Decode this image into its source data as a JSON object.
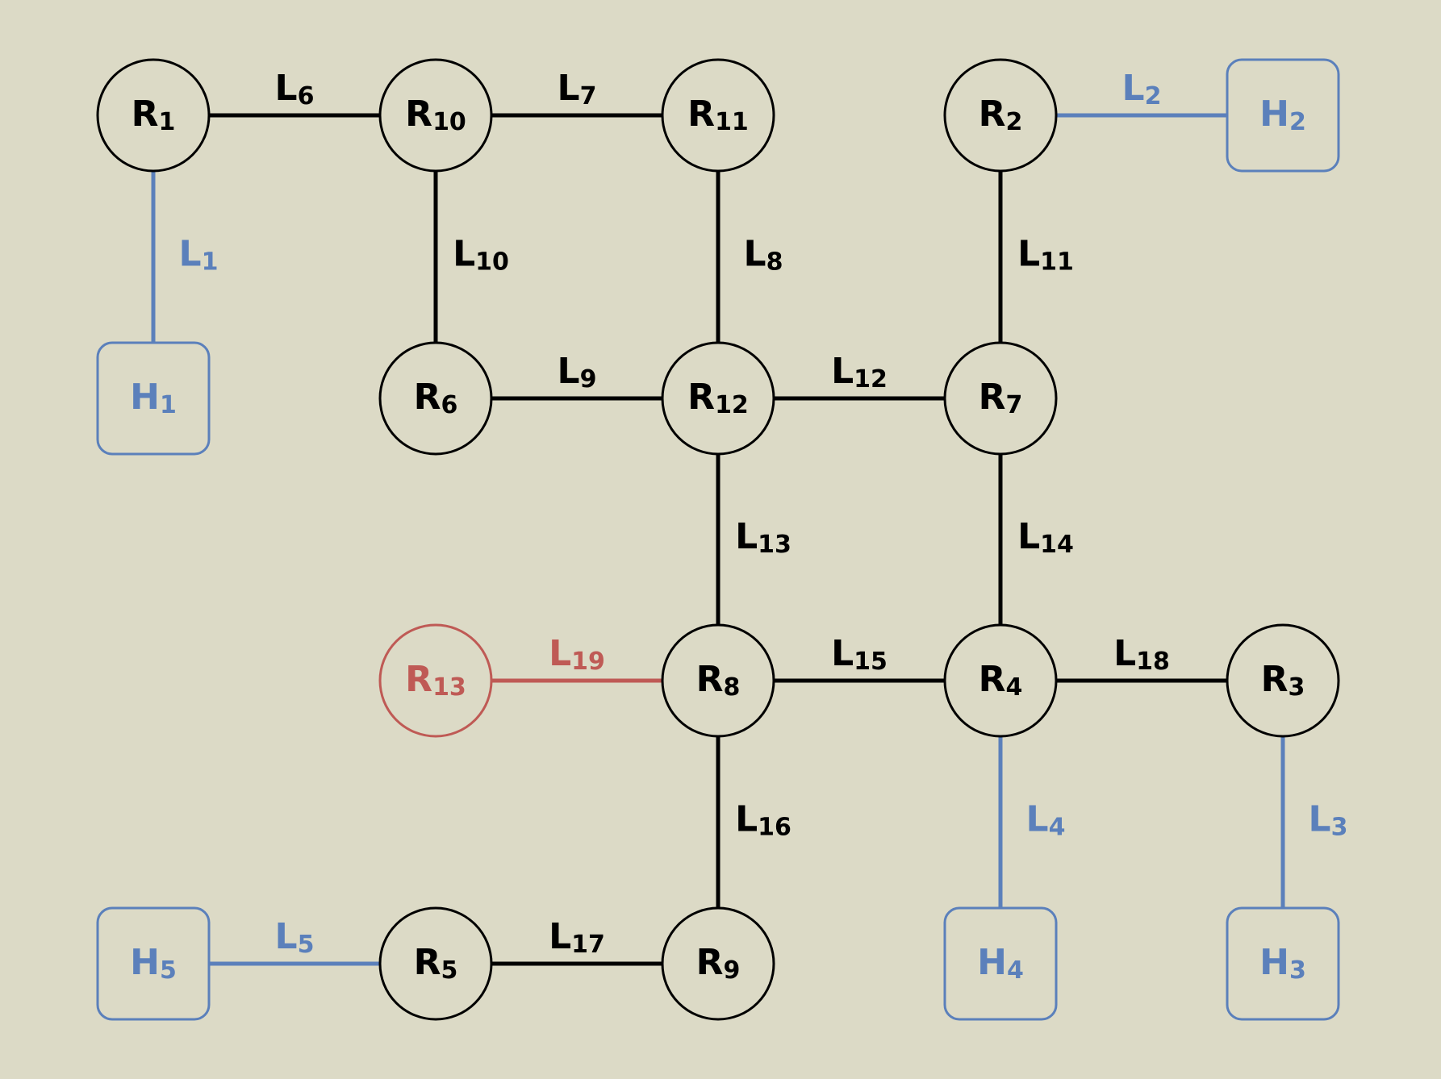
{
  "colors": {
    "background": "#dcdac6",
    "router": "#000000",
    "host": "#5b80bb",
    "highlight": "#bf5a55"
  },
  "nodes": [
    {
      "id": "R1",
      "type": "router",
      "base": "R",
      "sub": "1",
      "col": 0,
      "row": 0
    },
    {
      "id": "R10",
      "type": "router",
      "base": "R",
      "sub": "10",
      "col": 1,
      "row": 0
    },
    {
      "id": "R11",
      "type": "router",
      "base": "R",
      "sub": "11",
      "col": 2,
      "row": 0
    },
    {
      "id": "R2",
      "type": "router",
      "base": "R",
      "sub": "2",
      "col": 3,
      "row": 0
    },
    {
      "id": "H2",
      "type": "host",
      "base": "H",
      "sub": "2",
      "col": 4,
      "row": 0
    },
    {
      "id": "H1",
      "type": "host",
      "base": "H",
      "sub": "1",
      "col": 0,
      "row": 1
    },
    {
      "id": "R6",
      "type": "router",
      "base": "R",
      "sub": "6",
      "col": 1,
      "row": 1
    },
    {
      "id": "R12",
      "type": "router",
      "base": "R",
      "sub": "12",
      "col": 2,
      "row": 1
    },
    {
      "id": "R7",
      "type": "router",
      "base": "R",
      "sub": "7",
      "col": 3,
      "row": 1
    },
    {
      "id": "R13",
      "type": "highlight",
      "base": "R",
      "sub": "13",
      "col": 1,
      "row": 2
    },
    {
      "id": "R8",
      "type": "router",
      "base": "R",
      "sub": "8",
      "col": 2,
      "row": 2
    },
    {
      "id": "R4",
      "type": "router",
      "base": "R",
      "sub": "4",
      "col": 3,
      "row": 2
    },
    {
      "id": "R3",
      "type": "router",
      "base": "R",
      "sub": "3",
      "col": 4,
      "row": 2
    },
    {
      "id": "H5",
      "type": "host",
      "base": "H",
      "sub": "5",
      "col": 0,
      "row": 3
    },
    {
      "id": "R5",
      "type": "router",
      "base": "R",
      "sub": "5",
      "col": 1,
      "row": 3
    },
    {
      "id": "R9",
      "type": "router",
      "base": "R",
      "sub": "9",
      "col": 2,
      "row": 3
    },
    {
      "id": "H4",
      "type": "host",
      "base": "H",
      "sub": "4",
      "col": 3,
      "row": 3
    },
    {
      "id": "H3",
      "type": "host",
      "base": "H",
      "sub": "3",
      "col": 4,
      "row": 3
    }
  ],
  "links": [
    {
      "id": "L1",
      "sub": "1",
      "from": "R1",
      "to": "H1",
      "type": "host"
    },
    {
      "id": "L2",
      "sub": "2",
      "from": "R2",
      "to": "H2",
      "type": "host"
    },
    {
      "id": "L3",
      "sub": "3",
      "from": "R3",
      "to": "H3",
      "type": "host"
    },
    {
      "id": "L4",
      "sub": "4",
      "from": "R4",
      "to": "H4",
      "type": "host"
    },
    {
      "id": "L5",
      "sub": "5",
      "from": "H5",
      "to": "R5",
      "type": "host"
    },
    {
      "id": "L6",
      "sub": "6",
      "from": "R1",
      "to": "R10",
      "type": "router"
    },
    {
      "id": "L7",
      "sub": "7",
      "from": "R10",
      "to": "R11",
      "type": "router"
    },
    {
      "id": "L8",
      "sub": "8",
      "from": "R11",
      "to": "R12",
      "type": "router"
    },
    {
      "id": "L9",
      "sub": "9",
      "from": "R6",
      "to": "R12",
      "type": "router"
    },
    {
      "id": "L10",
      "sub": "10",
      "from": "R10",
      "to": "R6",
      "type": "router"
    },
    {
      "id": "L11",
      "sub": "11",
      "from": "R2",
      "to": "R7",
      "type": "router"
    },
    {
      "id": "L12",
      "sub": "12",
      "from": "R12",
      "to": "R7",
      "type": "router"
    },
    {
      "id": "L13",
      "sub": "13",
      "from": "R12",
      "to": "R8",
      "type": "router"
    },
    {
      "id": "L14",
      "sub": "14",
      "from": "R7",
      "to": "R4",
      "type": "router"
    },
    {
      "id": "L15",
      "sub": "15",
      "from": "R8",
      "to": "R4",
      "type": "router"
    },
    {
      "id": "L16",
      "sub": "16",
      "from": "R8",
      "to": "R9",
      "type": "router"
    },
    {
      "id": "L17",
      "sub": "17",
      "from": "R5",
      "to": "R9",
      "type": "router"
    },
    {
      "id": "L18",
      "sub": "18",
      "from": "R4",
      "to": "R3",
      "type": "router"
    },
    {
      "id": "L19",
      "sub": "19",
      "from": "R13",
      "to": "R8",
      "type": "highlight"
    }
  ]
}
